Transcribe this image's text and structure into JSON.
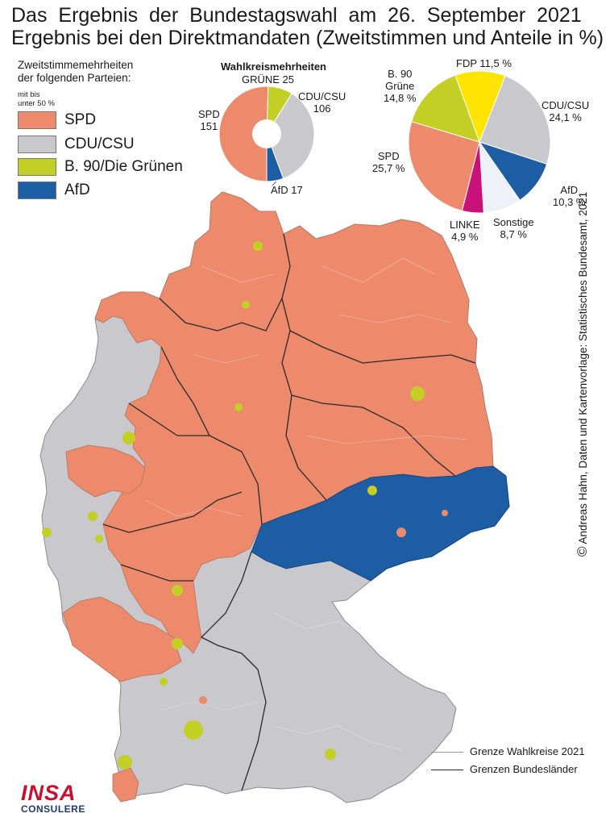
{
  "title_line1": "Das Ergebnis der Bundestagswahl am 26. September 2021",
  "title_line2": "Ergebnis bei den Direktmandaten (Zweitstimmen und Anteile in %)",
  "legend": {
    "heading_line1": "Zweitstimmemehrheiten",
    "heading_line2": "der folgenden Parteien:",
    "sub_line1": "mit bis",
    "sub_line2": "unter 50 %",
    "items": [
      {
        "label": "SPD",
        "color": "#ee8a6c"
      },
      {
        "label": "CDU/CSU",
        "color": "#c8c8cd"
      },
      {
        "label": "B. 90/Die Grünen",
        "color": "#c3cf24"
      },
      {
        "label": "AfD",
        "color": "#1c5da3"
      }
    ]
  },
  "seats_chart": {
    "title": "Wahlkreismehrheiten",
    "labels": {
      "gruene": "GRÜNE 25",
      "cdu_line1": "CDU/CSU",
      "cdu_line2": "106",
      "spd_line1": "SPD",
      "spd_line2": "151",
      "afd": "AfD 17"
    }
  },
  "votes_chart": {
    "labels": {
      "fdp": "FDP 11,5 %",
      "cdu_line1": "CDU/CSU",
      "cdu_line2": "24,1 %",
      "afd_line1": "AfD",
      "afd_line2": "10,3 %",
      "sonst_line1": "Sonstige",
      "sonst_line2": "8,7 %",
      "linke_line1": "LINKE",
      "linke_line2": "4,9 %",
      "spd_line1": "SPD",
      "spd_line2": "25,7 %",
      "gruene_line1": "B. 90",
      "gruene_line2": "Grüne",
      "gruene_line3": "14,8 %"
    }
  },
  "chart_data": [
    {
      "type": "pie",
      "title": "Wahlkreismehrheiten",
      "categories": [
        "SPD",
        "GRÜNE",
        "CDU/CSU",
        "AfD"
      ],
      "values": [
        151,
        25,
        106,
        17
      ],
      "colors": [
        "#ee8a6c",
        "#c3cf24",
        "#c8c8cd",
        "#1c5da3"
      ]
    },
    {
      "type": "pie",
      "categories": [
        "FDP",
        "CDU/CSU",
        "AfD",
        "Sonstige",
        "LINKE",
        "SPD",
        "B. 90 Grüne"
      ],
      "values": [
        11.5,
        24.1,
        10.3,
        8.7,
        4.9,
        25.7,
        14.8
      ],
      "colors": [
        "#ffe400",
        "#c8c8cd",
        "#1c5da3",
        "#eef2f8",
        "#c8127a",
        "#ee8a6c",
        "#c3cf24"
      ]
    }
  ],
  "credit": "Andreas Hahn, Daten und Kartenvorlage: Statistisches Bundesamt, 2021",
  "credit_symbol": "©",
  "map_legend": {
    "line1": "Grenze Wahlkreise 2021",
    "line2": "Grenzen Bundesländer"
  },
  "logo": {
    "line1": "INSA",
    "line2": "CONSULERE"
  }
}
